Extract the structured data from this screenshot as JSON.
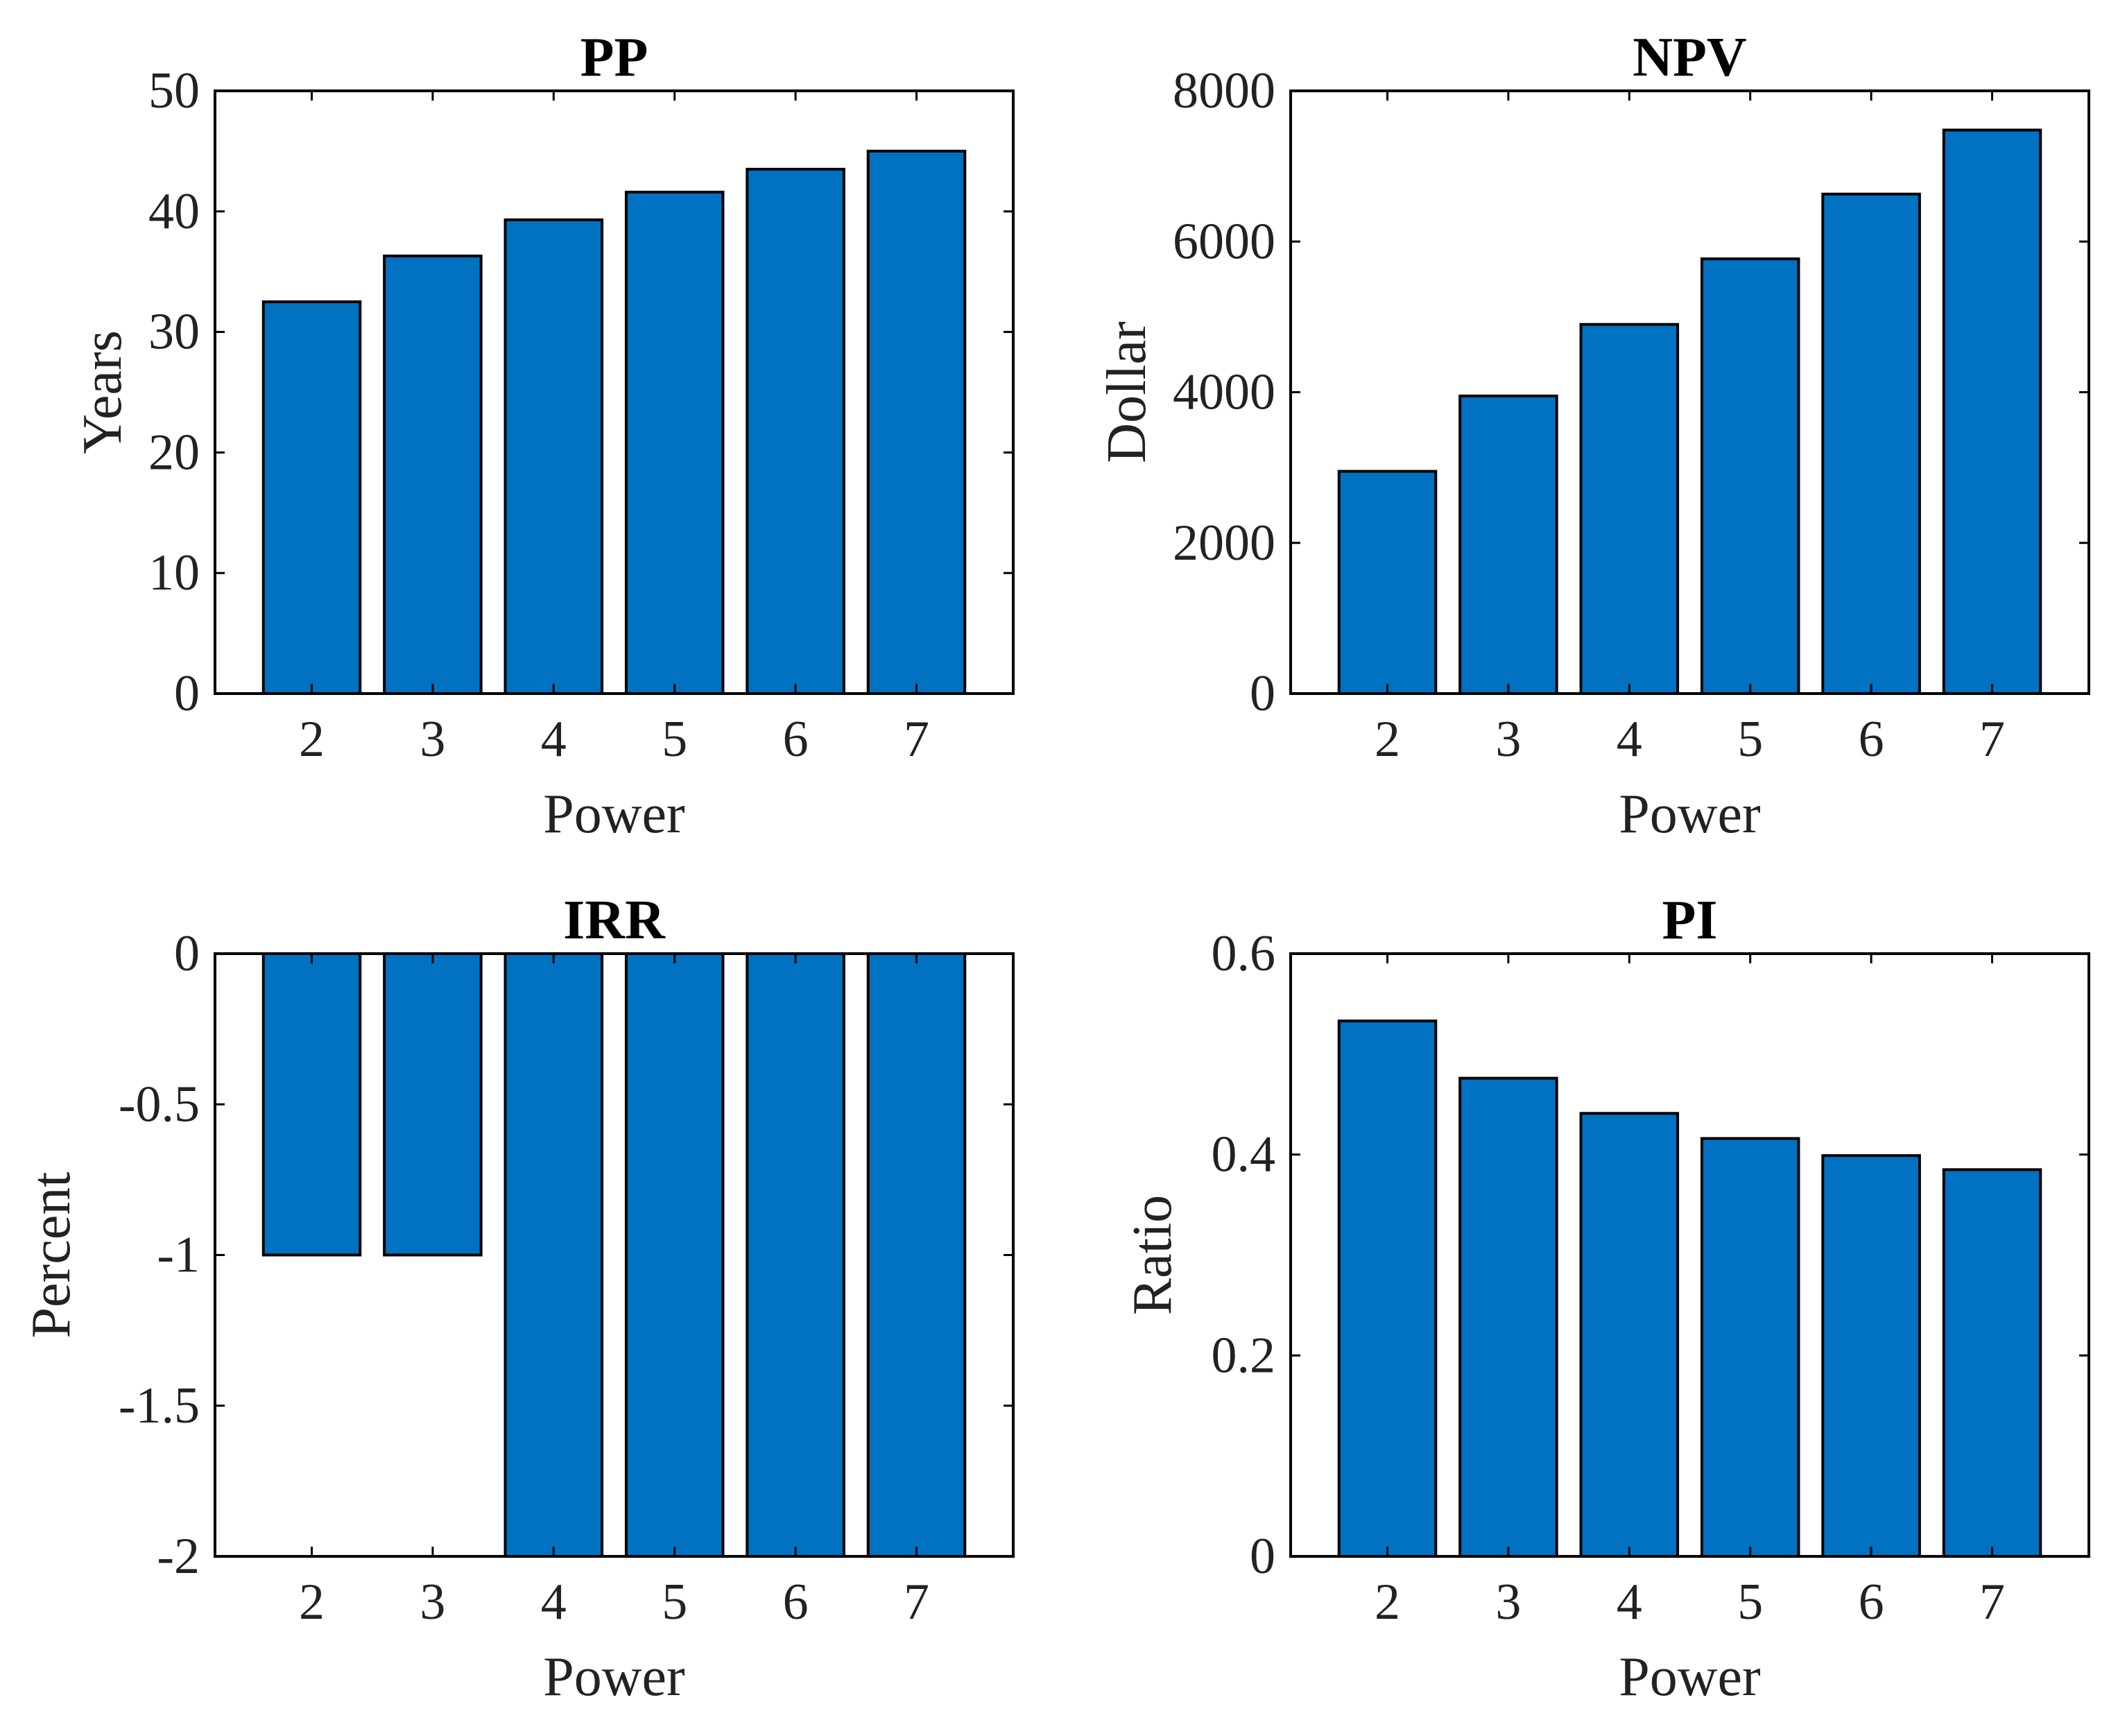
{
  "figure_title": "",
  "bar_color": "#0072C1",
  "chart_data": [
    {
      "id": "pp",
      "type": "bar",
      "title": "PP",
      "xlabel": "Power",
      "ylabel": "Years",
      "categories": [
        "2",
        "3",
        "4",
        "5",
        "6",
        "7"
      ],
      "values": [
        32.5,
        36.3,
        39.3,
        41.6,
        43.5,
        45.0
      ],
      "ylim": [
        0,
        50
      ],
      "yticks": [
        0,
        10,
        20,
        30,
        40,
        50
      ],
      "ytick_labels": [
        "0",
        "10",
        "20",
        "30",
        "40",
        "50"
      ],
      "xlim": [
        1.2,
        7.8
      ],
      "baseline": 0,
      "grid": false
    },
    {
      "id": "npv",
      "type": "bar",
      "title": "NPV",
      "xlabel": "Power",
      "ylabel": "Dollar",
      "categories": [
        "2",
        "3",
        "4",
        "5",
        "6",
        "7"
      ],
      "values": [
        2950,
        3950,
        4900,
        5770,
        6630,
        7480
      ],
      "ylim": [
        0,
        8000
      ],
      "yticks": [
        0,
        2000,
        4000,
        6000,
        8000
      ],
      "ytick_labels": [
        "0",
        "2000",
        "4000",
        "6000",
        "8000"
      ],
      "xlim": [
        1.2,
        7.8
      ],
      "baseline": 0,
      "grid": false
    },
    {
      "id": "irr",
      "type": "bar",
      "title": "IRR",
      "xlabel": "Power",
      "ylabel": "Percent",
      "categories": [
        "2",
        "3",
        "4",
        "5",
        "6",
        "7"
      ],
      "values": [
        -1,
        -1,
        -2,
        -2,
        -2,
        -2
      ],
      "ylim": [
        -2,
        0
      ],
      "yticks": [
        -2,
        -1.5,
        -1,
        -0.5,
        0
      ],
      "ytick_labels": [
        "-2",
        "-1.5",
        "-1",
        "-0.5",
        "0"
      ],
      "xlim": [
        1.2,
        7.8
      ],
      "baseline": 0,
      "grid": false
    },
    {
      "id": "pi",
      "type": "bar",
      "title": "PI",
      "xlabel": "Power",
      "ylabel": "Ratio",
      "categories": [
        "2",
        "3",
        "4",
        "5",
        "6",
        "7"
      ],
      "values": [
        0.533,
        0.476,
        0.441,
        0.416,
        0.399,
        0.385
      ],
      "ylim": [
        0,
        0.6
      ],
      "yticks": [
        0,
        0.2,
        0.4,
        0.6
      ],
      "ytick_labels": [
        "0",
        "0.2",
        "0.4",
        "0.6"
      ],
      "xlim": [
        1.2,
        7.8
      ],
      "baseline": 0,
      "grid": false
    }
  ]
}
